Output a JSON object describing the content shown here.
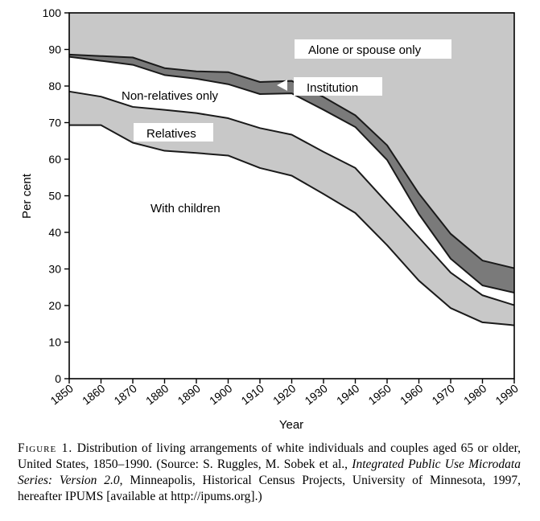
{
  "chart_data": {
    "type": "area",
    "xlabel": "Year",
    "ylabel": "Per cent",
    "xlim": [
      1850,
      1990
    ],
    "ylim": [
      0,
      100
    ],
    "x": [
      1850,
      1860,
      1870,
      1880,
      1890,
      1900,
      1910,
      1920,
      1930,
      1940,
      1950,
      1960,
      1970,
      1980,
      1990
    ],
    "x_ticks": [
      "1850",
      "1860",
      "1870",
      "1880",
      "1890",
      "1900",
      "1910",
      "1920",
      "1930",
      "1940",
      "1950",
      "1960",
      "1970",
      "1980",
      "1990"
    ],
    "y_ticks": [
      "0",
      "10",
      "20",
      "30",
      "40",
      "50",
      "60",
      "70",
      "80",
      "90",
      "100"
    ],
    "stacking": "cumulative",
    "series": [
      {
        "name": "With children",
        "fill": "#ffffff",
        "values": [
          69.3,
          69.3,
          64.5,
          62.3,
          61.7,
          61.0,
          57.6,
          55.5,
          50.5,
          45.3,
          36.5,
          26.8,
          19.3,
          15.4,
          14.6
        ]
      },
      {
        "name": "Relatives",
        "fill": "#c8c8c8",
        "values": [
          78.5,
          77.1,
          74.3,
          73.5,
          72.6,
          71.2,
          68.5,
          66.7,
          62.0,
          57.6,
          48.1,
          38.6,
          29.0,
          22.8,
          20.1
        ]
      },
      {
        "name": "Non-relatives only",
        "fill": "#ffffff",
        "values": [
          88.0,
          86.9,
          85.8,
          83.0,
          82.0,
          80.5,
          77.8,
          78.0,
          73.5,
          68.8,
          59.8,
          45.0,
          32.8,
          25.5,
          23.5
        ]
      },
      {
        "name": "Institution",
        "fill": "#7a7a7a",
        "values": [
          88.6,
          88.2,
          87.8,
          84.9,
          84.0,
          83.8,
          81.1,
          81.4,
          77.0,
          72.0,
          63.8,
          50.6,
          39.6,
          32.3,
          30.2
        ]
      },
      {
        "name": "Alone or spouse only",
        "fill": "#c8c8c8",
        "values": [
          100,
          100,
          100,
          100,
          100,
          100,
          100,
          100,
          100,
          100,
          100,
          100,
          100,
          100,
          100
        ]
      }
    ]
  },
  "caption": {
    "lead": "Figure 1.",
    "part1": " Distribution of living arrangements of white individuals and couples aged 65 or older, United States, 1850–1990. (Source: S. Ruggles, M. Sobek et al., ",
    "title": "Integrated Public Use Microdata Series: Version 2.0",
    "part2": ", Minneapolis, Historical Census Projects, University of Minnesota, 1997, hereafter IPUMS [available at http://ipums.org].)"
  }
}
